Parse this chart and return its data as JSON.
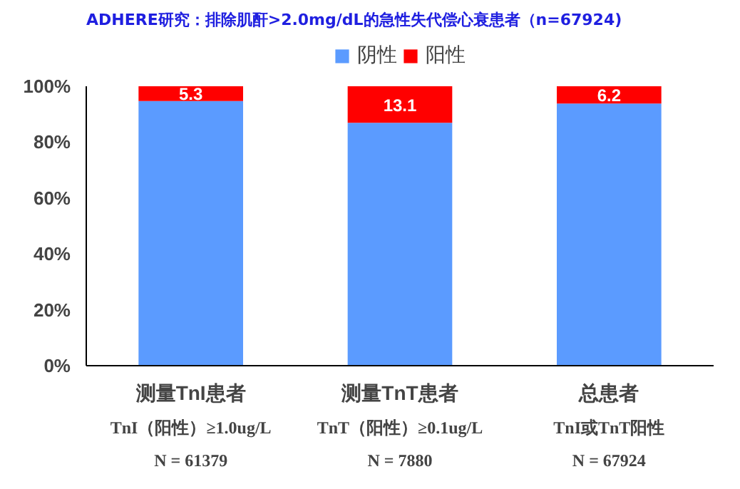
{
  "chart_data": {
    "type": "bar",
    "title": "ADHERE研究：排除肌酐>2.0mg/dL的急性失代偿心衰患者（n=67924)",
    "categories": [
      "测量TnI患者",
      "测量TnT患者",
      "总患者"
    ],
    "series": [
      {
        "name": "阴性",
        "color": "#5b9bff",
        "values": [
          94.7,
          86.9,
          93.8
        ]
      },
      {
        "name": "阳性",
        "color": "#ff0000",
        "values": [
          5.3,
          13.1,
          6.2
        ],
        "value_labels": [
          "5.3",
          "13.1",
          "6.2"
        ]
      }
    ],
    "stacked": true,
    "ylim": [
      0,
      100
    ],
    "yticks": [
      {
        "value": 0,
        "label": "0%"
      },
      {
        "value": 20,
        "label": "20%"
      },
      {
        "value": 40,
        "label": "40%"
      },
      {
        "value": 60,
        "label": "60%"
      },
      {
        "value": 80,
        "label": "80%"
      },
      {
        "value": 100,
        "label": "100%"
      }
    ],
    "grid": false,
    "legend": "top",
    "annotations": [
      "TnI（阳性）≥1.0ug/L",
      "N = 61379",
      "TnT（阳性）≥0.1ug/L",
      "N = 7880",
      "TnI或TnT阳性",
      "N = 67924"
    ]
  }
}
